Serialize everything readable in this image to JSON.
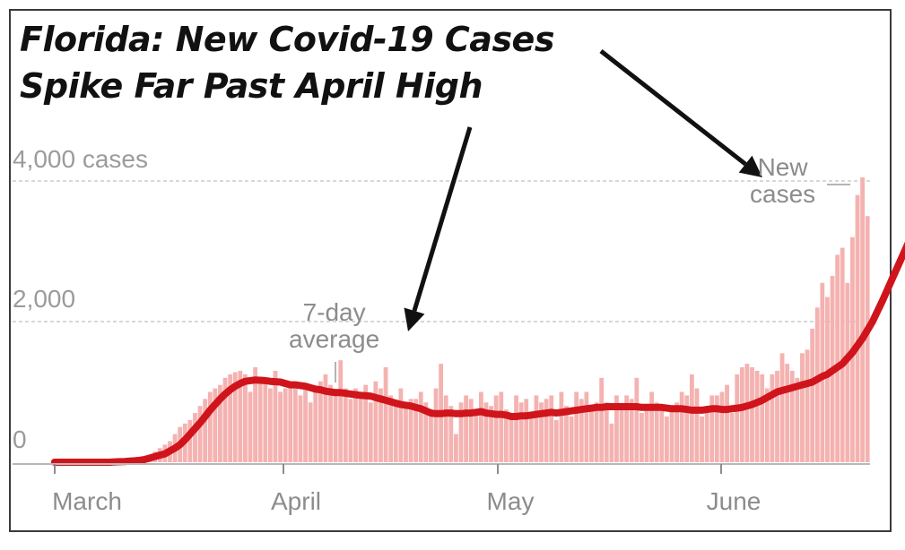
{
  "headline": {
    "line1": "Florida: New Covid-19 Cases",
    "line2": "Spike Far Past April High"
  },
  "chart_data": {
    "type": "bar",
    "title": "Florida: New Covid-19 Cases Spike Far Past April High",
    "y_tick_labels": [
      "4,000 cases",
      "2,000",
      "0"
    ],
    "x_tick_labels": [
      "March",
      "April",
      "May",
      "June"
    ],
    "ylim": [
      0,
      4000
    ],
    "annotations": {
      "average_line1": "7-day",
      "average_line2": "average",
      "new_line1": "New",
      "new_line2": "cases"
    },
    "series": [
      {
        "name": "New cases",
        "values": [
          0,
          0,
          0,
          0,
          0,
          0,
          0,
          0,
          0,
          0,
          0,
          0,
          5,
          8,
          10,
          15,
          20,
          30,
          60,
          100,
          150,
          200,
          250,
          300,
          400,
          500,
          550,
          600,
          700,
          800,
          900,
          1000,
          1050,
          1100,
          1200,
          1250,
          1280,
          1300,
          1250,
          1000,
          1350,
          1150,
          1200,
          1050,
          1300,
          1000,
          1050,
          1150,
          1050,
          950,
          1100,
          850,
          1050,
          1150,
          1250,
          1100,
          1000,
          1450,
          1050,
          900,
          1050,
          900,
          1100,
          850,
          1150,
          1050,
          1350,
          950,
          800,
          1050,
          850,
          900,
          900,
          1000,
          850,
          700,
          1050,
          1400,
          950,
          800,
          400,
          850,
          950,
          900,
          700,
          1000,
          850,
          800,
          950,
          1000,
          750,
          700,
          950,
          850,
          900,
          700,
          950,
          850,
          900,
          950,
          600,
          1000,
          800,
          650,
          1000,
          900,
          1000,
          800,
          850,
          1200,
          850,
          550,
          950,
          800,
          950,
          900,
          1200,
          700,
          750,
          1000,
          850,
          800,
          650,
          750,
          850,
          1000,
          950,
          1250,
          1050,
          650,
          800,
          950,
          950,
          1000,
          1100,
          700,
          1250,
          1350,
          1400,
          1350,
          1300,
          1250,
          1050,
          1250,
          1300,
          1550,
          1400,
          1300,
          1200,
          1550,
          1600,
          1900,
          2200,
          2550,
          2350,
          2650,
          2950,
          3050,
          2550,
          3200,
          3800,
          4050,
          3500
        ]
      },
      {
        "name": "7-day average",
        "values": [
          0,
          0,
          0,
          0,
          0,
          0,
          0,
          0,
          0,
          0,
          0,
          0,
          5,
          8,
          10,
          15,
          20,
          28,
          40,
          60,
          80,
          100,
          120,
          160,
          200,
          250,
          320,
          400,
          480,
          560,
          650,
          740,
          820,
          900,
          970,
          1030,
          1080,
          1120,
          1150,
          1160,
          1170,
          1165,
          1160,
          1150,
          1145,
          1140,
          1120,
          1100,
          1100,
          1090,
          1080,
          1060,
          1040,
          1030,
          1010,
          1000,
          990,
          990,
          980,
          970,
          960,
          950,
          945,
          940,
          920,
          900,
          880,
          860,
          840,
          820,
          810,
          800,
          780,
          760,
          730,
          700,
          690,
          690,
          700,
          700,
          690,
          690,
          700,
          700,
          710,
          720,
          700,
          690,
          680,
          680,
          670,
          650,
          650,
          660,
          660,
          670,
          680,
          690,
          700,
          710,
          700,
          710,
          720,
          730,
          740,
          750,
          760,
          770,
          780,
          780,
          790,
          790,
          790,
          790,
          790,
          790,
          790,
          780,
          780,
          780,
          780,
          780,
          770,
          760,
          760,
          760,
          750,
          740,
          740,
          740,
          750,
          760,
          760,
          750,
          750,
          760,
          770,
          780,
          800,
          820,
          850,
          880,
          920,
          960,
          1000,
          1020,
          1040,
          1060,
          1080,
          1100,
          1120,
          1140,
          1180,
          1220,
          1250,
          1300,
          1350,
          1400,
          1480,
          1560,
          1660,
          1760,
          1880,
          2000,
          2150,
          2300,
          2460,
          2620,
          2780,
          2940,
          3100
        ]
      }
    ],
    "colors": {
      "bars": "#f4b2b0",
      "average_line": "#d0141c",
      "gridline": "#cccccc",
      "arrows": "#111111"
    }
  }
}
